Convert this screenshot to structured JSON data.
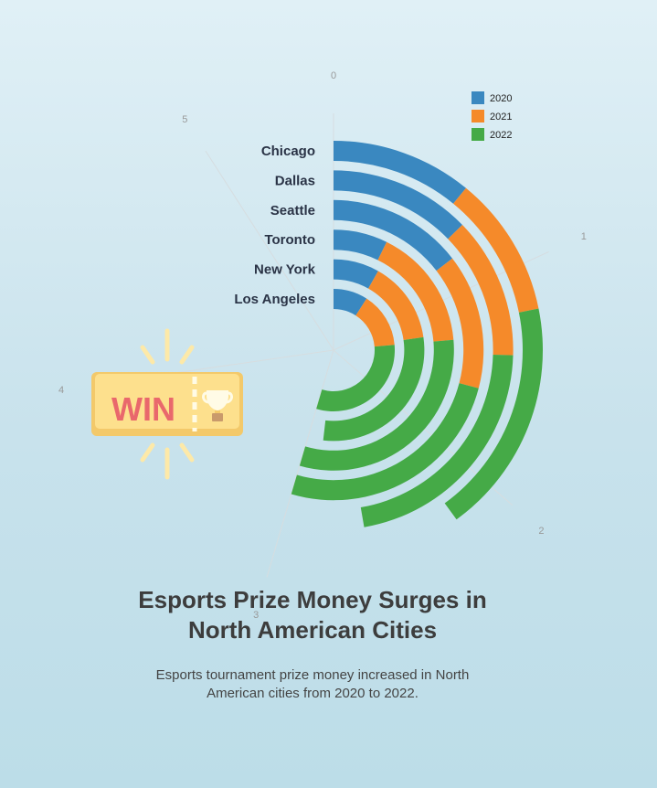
{
  "page": {
    "title": "Esports Prize Money Surges in\nNorth American Cities",
    "subtitle": "Esports tournament prize money increased in North\nAmerican cities from 2020 to 2022."
  },
  "colors": {
    "2020": "#3a88c0",
    "2021": "#f58a2a",
    "2022": "#45aa47",
    "tick_text": "#999999",
    "label_text": "#2a3346"
  },
  "icon": {
    "name": "win-ticket-icon",
    "text": "WIN"
  },
  "chart_data": {
    "type": "radial-stacked-bar",
    "categories": [
      "Chicago",
      "Dallas",
      "Seattle",
      "Toronto",
      "New York",
      "Los Angeles"
    ],
    "series": [
      {
        "name": "2020",
        "values": [
          0.6,
          0.7,
          0.8,
          0.4,
          0.45,
          0.5
        ]
      },
      {
        "name": "2021",
        "values": [
          0.6,
          0.7,
          0.8,
          0.9,
          0.8,
          0.8
        ]
      },
      {
        "name": "2022",
        "values": [
          1.0,
          1.2,
          1.4,
          1.7,
          1.6,
          1.7
        ]
      }
    ],
    "angular_axis": {
      "min": 0,
      "max": 5.5,
      "ticks": [
        "0",
        "1",
        "2",
        "3",
        "4",
        "5"
      ]
    },
    "legend": {
      "position": "top-right",
      "entries": [
        "2020",
        "2021",
        "2022"
      ]
    }
  }
}
